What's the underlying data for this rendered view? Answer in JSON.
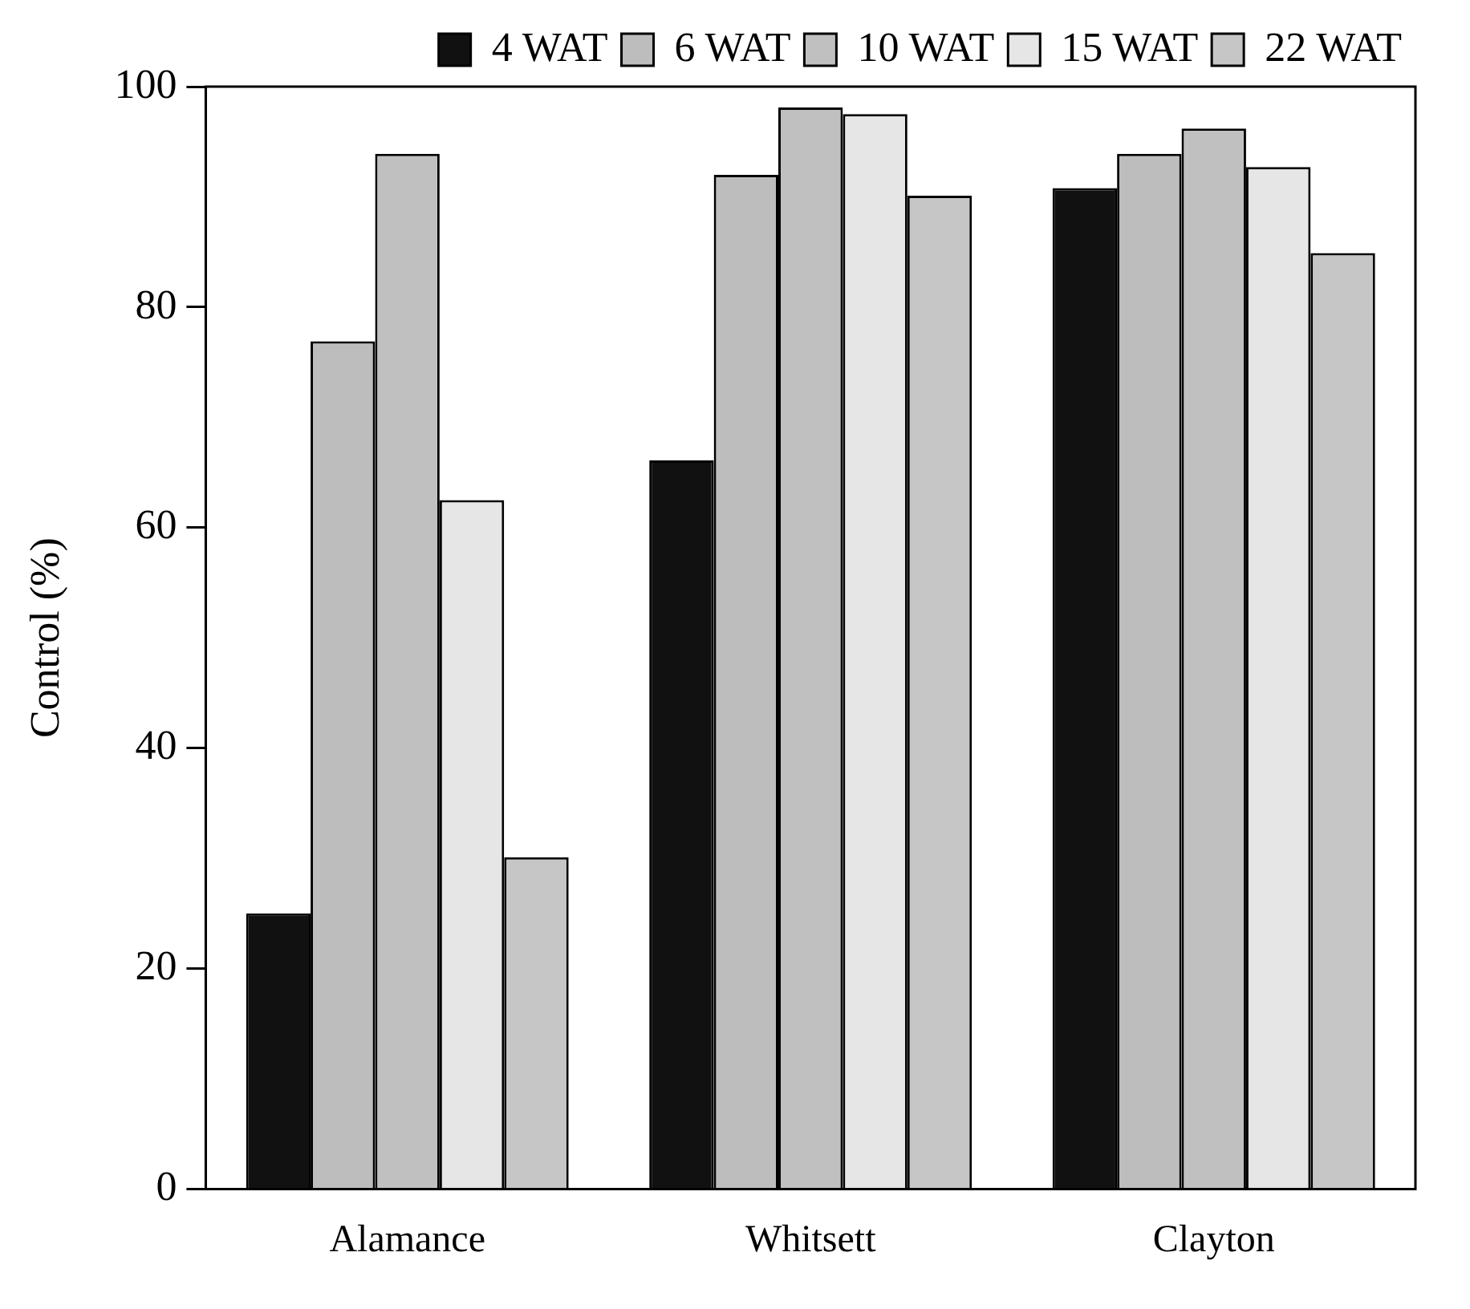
{
  "chart_data": {
    "type": "bar",
    "ylabel": "Control (%)",
    "categories": [
      "Alamance",
      "Whitsett",
      "Clayton"
    ],
    "series": [
      {
        "name": "4 WAT",
        "color": "#111111",
        "values": [
          25.0,
          66.1,
          90.8
        ]
      },
      {
        "name": "6 WAT",
        "color": "#bdbdbd",
        "values": [
          76.9,
          92.0,
          93.9
        ]
      },
      {
        "name": "10 WAT",
        "color": "#c0c0c0",
        "values": [
          93.9,
          98.1,
          96.2
        ]
      },
      {
        "name": "15 WAT",
        "color": "#e6e6e6",
        "values": [
          62.5,
          97.5,
          92.7
        ]
      },
      {
        "name": "22 WAT",
        "color": "#c6c6c6",
        "values": [
          30.1,
          90.1,
          84.9
        ]
      }
    ],
    "ylim": [
      0,
      100
    ],
    "yticks": [
      0,
      20,
      40,
      60,
      80,
      100
    ],
    "grid": false,
    "legend": "top"
  }
}
